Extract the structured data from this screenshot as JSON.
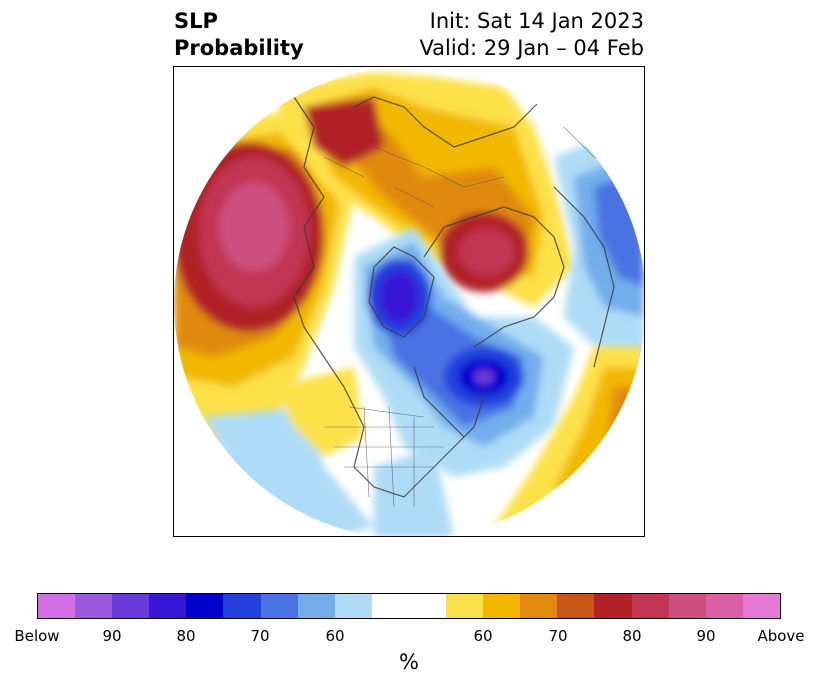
{
  "title": {
    "left_line1": "SLP",
    "left_line2": "Probability",
    "right_line1": "Init: Sat 14 Jan 2023",
    "right_line2": "Valid: 29 Jan – 04 Feb"
  },
  "map": {
    "projection": "north polar stereographic",
    "variable": "SLP"
  },
  "colorbar": {
    "unit_label": "%",
    "colors": [
      "#d36ee6",
      "#9b59dd",
      "#6a3bd9",
      "#3718d6",
      "#0000cd",
      "#2441dd",
      "#4a73e3",
      "#72aeec",
      "#aedcf6",
      "#ffffff",
      "#ffffff",
      "#fde14a",
      "#f2b800",
      "#e08a0e",
      "#c8561a",
      "#b12227",
      "#c23553",
      "#cd4f7e",
      "#da60a6",
      "#e47ad6"
    ],
    "tick_labels": [
      "Below",
      "90",
      "80",
      "70",
      "60",
      "60",
      "70",
      "80",
      "90",
      "Above"
    ]
  }
}
